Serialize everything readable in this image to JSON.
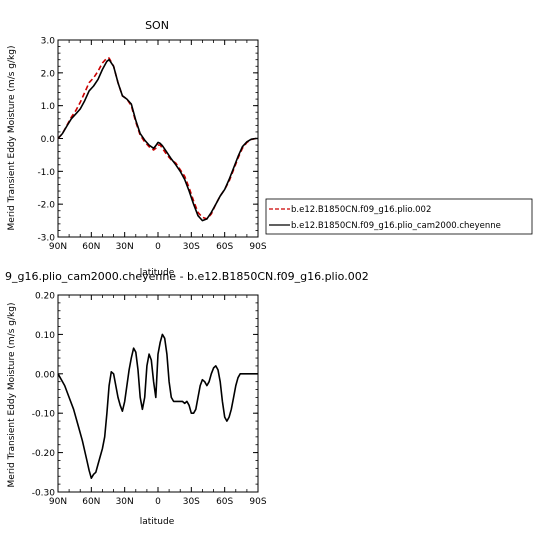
{
  "chart_data": [
    {
      "type": "line",
      "title": "SON",
      "xlabel": "latitude",
      "ylabel": "Merid Transient Eddy Moisture (m/s g/kg)",
      "xlim": [
        90,
        -90
      ],
      "ylim": [
        -3,
        3
      ],
      "x_ticks": [
        90,
        60,
        30,
        0,
        -30,
        -60,
        -90
      ],
      "x_tick_labels": [
        "90N",
        "60N",
        "30N",
        "0",
        "30S",
        "60S",
        "90S"
      ],
      "y_ticks": [
        3,
        2,
        1,
        0,
        -1,
        -2,
        -3
      ],
      "y_tick_labels": [
        "3.0",
        "2.0",
        "1.0",
        "0.0",
        "-1.0",
        "-2.0",
        "-3.0"
      ],
      "legend_position": "right",
      "series": [
        {
          "name": "b.e12.B1850CN.f09_g16.plio.002",
          "color": "#cc0000",
          "dash": "dashed",
          "x": [
            90,
            86,
            82,
            78,
            74,
            70,
            66,
            62,
            58,
            54,
            50,
            46,
            44,
            40,
            36,
            32,
            28,
            24,
            20,
            16,
            12,
            8,
            4,
            2,
            0,
            -2,
            -4,
            -8,
            -12,
            -16,
            -20,
            -24,
            -28,
            -32,
            -36,
            -40,
            -44,
            -48,
            -52,
            -56,
            -60,
            -64,
            -68,
            -72,
            -76,
            -80,
            -84,
            -88,
            -90
          ],
          "y": [
            0.0,
            0.15,
            0.4,
            0.65,
            0.85,
            1.1,
            1.4,
            1.7,
            1.85,
            2.05,
            2.3,
            2.45,
            2.45,
            2.2,
            1.7,
            1.3,
            1.2,
            1.0,
            0.5,
            0.1,
            -0.1,
            -0.25,
            -0.35,
            -0.3,
            -0.2,
            -0.2,
            -0.3,
            -0.5,
            -0.65,
            -0.75,
            -0.95,
            -1.15,
            -1.5,
            -1.9,
            -2.25,
            -2.4,
            -2.45,
            -2.3,
            -2.0,
            -1.75,
            -1.55,
            -1.3,
            -0.95,
            -0.6,
            -0.3,
            -0.12,
            -0.03,
            0.0,
            0.0
          ]
        },
        {
          "name": "b.e12.B1850CN.f09_g16.plio_cam2000.cheyenne",
          "color": "#000000",
          "dash": "solid",
          "x": [
            90,
            86,
            82,
            78,
            74,
            70,
            66,
            62,
            58,
            54,
            50,
            46,
            44,
            40,
            36,
            32,
            28,
            24,
            20,
            16,
            12,
            8,
            4,
            2,
            0,
            -2,
            -4,
            -8,
            -12,
            -16,
            -20,
            -24,
            -28,
            -32,
            -36,
            -40,
            -44,
            -48,
            -52,
            -56,
            -60,
            -64,
            -68,
            -72,
            -76,
            -80,
            -84,
            -88,
            -90
          ],
          "y": [
            0.0,
            0.15,
            0.38,
            0.6,
            0.75,
            0.9,
            1.15,
            1.45,
            1.6,
            1.8,
            2.1,
            2.35,
            2.4,
            2.2,
            1.7,
            1.3,
            1.2,
            1.05,
            0.55,
            0.15,
            -0.05,
            -0.2,
            -0.3,
            -0.22,
            -0.12,
            -0.15,
            -0.22,
            -0.42,
            -0.62,
            -0.8,
            -1.0,
            -1.25,
            -1.6,
            -2.0,
            -2.35,
            -2.5,
            -2.45,
            -2.25,
            -2.0,
            -1.75,
            -1.55,
            -1.25,
            -0.9,
            -0.55,
            -0.25,
            -0.1,
            -0.02,
            0.0,
            0.0
          ]
        }
      ]
    },
    {
      "type": "line",
      "title": "9_g16.plio_cam2000.cheyenne - b.e12.B1850CN.f09_g16.plio.002",
      "xlabel": "latitude",
      "ylabel": "Merid Transient Eddy Moisture (m/s g/kg)",
      "xlim": [
        90,
        -90
      ],
      "ylim": [
        -0.3,
        0.2
      ],
      "x_ticks": [
        90,
        60,
        30,
        0,
        -30,
        -60,
        -90
      ],
      "x_tick_labels": [
        "90N",
        "60N",
        "30N",
        "0",
        "30S",
        "60S",
        "90S"
      ],
      "y_ticks": [
        0.2,
        0.1,
        0.0,
        -0.1,
        -0.2,
        -0.3
      ],
      "y_tick_labels": [
        "0.20",
        "0.10",
        "0.00",
        "-0.10",
        "-0.20",
        "-0.30"
      ],
      "series": [
        {
          "color": "#000000",
          "dash": "solid",
          "x": [
            90,
            88,
            84,
            80,
            76,
            72,
            68,
            64,
            62,
            60,
            58,
            56,
            54,
            52,
            50,
            48,
            46,
            44,
            42,
            40,
            38,
            36,
            34,
            32,
            30,
            28,
            26,
            24,
            22,
            20,
            18,
            16,
            14,
            12,
            10,
            8,
            6,
            4,
            2,
            0,
            -2,
            -4,
            -6,
            -8,
            -10,
            -12,
            -14,
            -16,
            -18,
            -20,
            -22,
            -24,
            -26,
            -28,
            -30,
            -32,
            -34,
            -36,
            -38,
            -40,
            -42,
            -44,
            -46,
            -48,
            -50,
            -52,
            -54,
            -56,
            -58,
            -60,
            -62,
            -64,
            -66,
            -68,
            -70,
            -72,
            -74,
            -76,
            -78,
            -80,
            -82,
            -84,
            -86,
            -88,
            -90
          ],
          "y": [
            0.0,
            -0.01,
            -0.03,
            -0.06,
            -0.09,
            -0.13,
            -0.17,
            -0.22,
            -0.245,
            -0.265,
            -0.255,
            -0.25,
            -0.23,
            -0.21,
            -0.19,
            -0.16,
            -0.1,
            -0.03,
            0.005,
            0.0,
            -0.03,
            -0.06,
            -0.08,
            -0.095,
            -0.07,
            -0.03,
            0.01,
            0.04,
            0.065,
            0.055,
            0.01,
            -0.06,
            -0.09,
            -0.06,
            0.02,
            0.05,
            0.035,
            -0.02,
            -0.06,
            0.05,
            0.08,
            0.1,
            0.09,
            0.05,
            -0.02,
            -0.06,
            -0.07,
            -0.07,
            -0.07,
            -0.07,
            -0.07,
            -0.075,
            -0.07,
            -0.08,
            -0.1,
            -0.1,
            -0.09,
            -0.06,
            -0.03,
            -0.015,
            -0.02,
            -0.03,
            -0.02,
            0.0,
            0.015,
            0.02,
            0.01,
            -0.02,
            -0.07,
            -0.11,
            -0.12,
            -0.11,
            -0.09,
            -0.06,
            -0.03,
            -0.01,
            0.0,
            0.0,
            0.0,
            0.0,
            0.0,
            0.0,
            0.0,
            0.0,
            0.0
          ]
        }
      ]
    }
  ]
}
